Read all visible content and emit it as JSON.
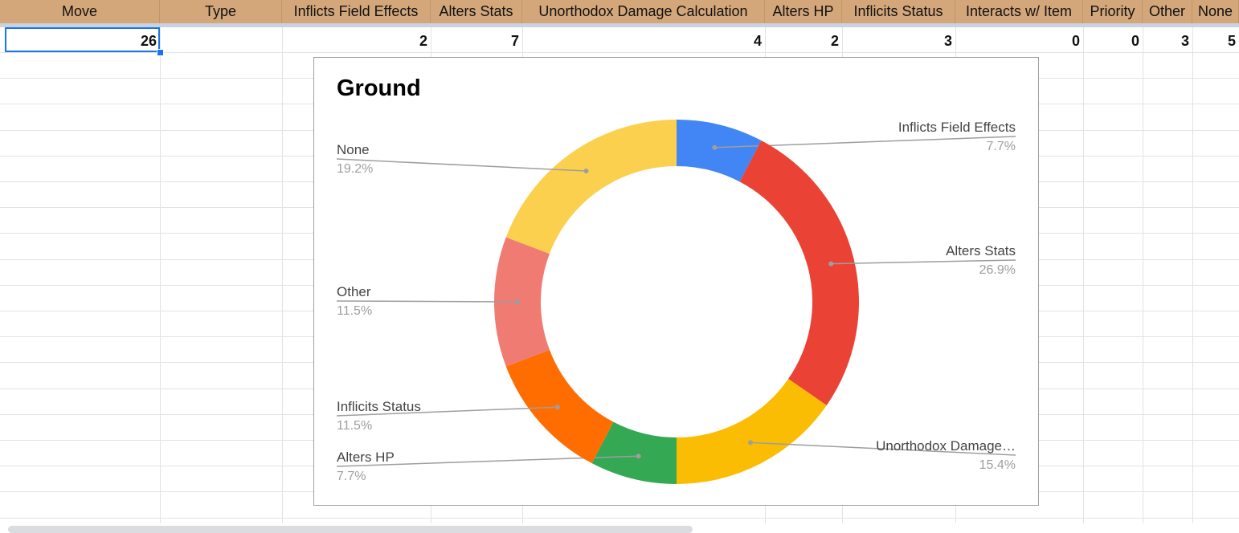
{
  "sheet": {
    "headers": [
      "Move",
      "Type",
      "Inflicts Field Effects",
      "Alters Stats",
      "Unorthodox Damage Calculation",
      "Alters HP",
      "Inflicits Status",
      "Interacts w/ Item",
      "Priority",
      "Other",
      "None"
    ],
    "row1": [
      "26",
      "",
      "2",
      "7",
      "4",
      "2",
      "3",
      "0",
      "0",
      "3",
      "5"
    ]
  },
  "chart_data": {
    "type": "pie",
    "style": "donut",
    "title": "Ground",
    "labels": [
      "Inflicts Field Effects",
      "Alters Stats",
      "Unorthodox Damage…",
      "Alters HP",
      "Inflicits Status",
      "Other",
      "None"
    ],
    "values": [
      2,
      7,
      4,
      2,
      3,
      3,
      5
    ],
    "percent_labels": [
      "7.7%",
      "26.9%",
      "15.4%",
      "7.7%",
      "11.5%",
      "11.5%",
      "19.2%"
    ],
    "colors": [
      "#4285f4",
      "#ea4335",
      "#fbbc04",
      "#34a853",
      "#ff6d01",
      "#f07b72",
      "#fcd04f"
    ],
    "legend": "labeled-slices"
  }
}
